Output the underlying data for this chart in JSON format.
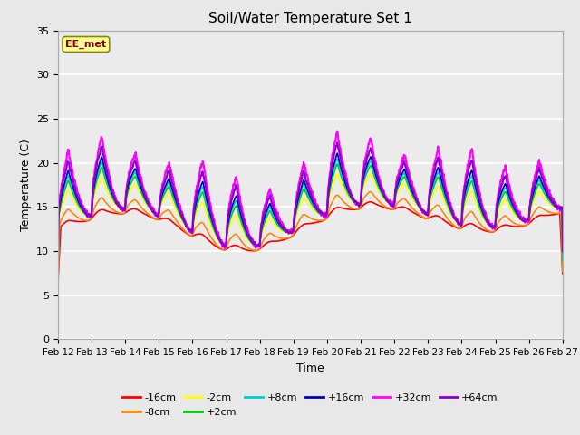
{
  "title": "Soil/Water Temperature Set 1",
  "xlabel": "Time",
  "ylabel": "Temperature (C)",
  "ylim": [
    0,
    35
  ],
  "x_tick_labels": [
    "Feb 12",
    "Feb 13",
    "Feb 14",
    "Feb 15",
    "Feb 16",
    "Feb 17",
    "Feb 18",
    "Feb 19",
    "Feb 20",
    "Feb 21",
    "Feb 22",
    "Feb 23",
    "Feb 24",
    "Feb 25",
    "Feb 26",
    "Feb 27"
  ],
  "annotation_text": "EE_met",
  "annotation_bg": "#ffff99",
  "annotation_border": "#888800",
  "annotation_text_color": "#880000",
  "series": [
    {
      "label": "-16cm",
      "color": "#ff0000"
    },
    {
      "label": "-8cm",
      "color": "#ff8800"
    },
    {
      "label": "-2cm",
      "color": "#ffff00"
    },
    {
      "label": "+2cm",
      "color": "#00cc00"
    },
    {
      "label": "+8cm",
      "color": "#00cccc"
    },
    {
      "label": "+16cm",
      "color": "#0000bb"
    },
    {
      "label": "+32cm",
      "color": "#ff00ff"
    },
    {
      "label": "+64cm",
      "color": "#8800cc"
    }
  ],
  "background_color": "#e8e8e8",
  "plot_bg_color": "#ebebeb",
  "grid_color": "#ffffff"
}
